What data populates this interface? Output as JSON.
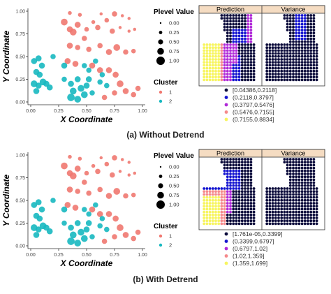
{
  "panels": [
    {
      "caption": "(a) Without Detrend",
      "scatter": {
        "xlabel": "X Coordinate",
        "ylabel": "Y Coordinate",
        "xticks": [
          "0.00",
          "0.25",
          "0.50",
          "0.75",
          "1.00"
        ],
        "yticks": [
          "0.00",
          "0.25",
          "0.50",
          "0.75",
          "1.00"
        ]
      },
      "size_legend": {
        "title": "Plevel Value",
        "labels": [
          "0.00",
          "0.25",
          "0.50",
          "0.75",
          "1.00"
        ]
      },
      "cluster_legend": {
        "title": "Cluster",
        "labels": [
          "1",
          "2"
        ]
      },
      "map": {
        "facets": [
          "Prediction",
          "Variance"
        ],
        "bins": [
          "[0.04386,0.2118]",
          "(0.2118,0.3797]",
          "(0.3797,0.5476]",
          "(0.5476,0.7155]",
          "(0.7155,0.8834]"
        ]
      }
    },
    {
      "caption": "(b) With Detrend",
      "scatter": {
        "xlabel": "X Coordinate",
        "ylabel": "Y Coordinate",
        "xticks": [
          "0.00",
          "0.25",
          "0.50",
          "0.75",
          "1.00"
        ],
        "yticks": [
          "0.00",
          "0.25",
          "0.50",
          "0.75",
          "1.00"
        ]
      },
      "size_legend": {
        "title": "Plevel Value",
        "labels": [
          "0.00",
          "0.25",
          "0.50",
          "0.75",
          "1.00"
        ]
      },
      "cluster_legend": {
        "title": "Cluster",
        "labels": [
          "1",
          "2"
        ]
      },
      "map": {
        "facets": [
          "Prediction",
          "Variance"
        ],
        "bins": [
          "[1.761e-05,0.3399]",
          "(0.3399,0.6797]",
          "(0.6797,1.02]",
          "(1.02,1.359]",
          "(1.359,1.699]"
        ]
      }
    }
  ],
  "colors": {
    "cluster1": "#f07870",
    "cluster2": "#17b8c0",
    "bins": [
      "#0b0b3b",
      "#1515d0",
      "#b02ad8",
      "#f58a8c",
      "#f7f560"
    ],
    "strip": "#f5dcc2"
  },
  "chart_data": [
    {
      "type": "scatter",
      "xlim": [
        0,
        1
      ],
      "ylim": [
        0,
        1
      ],
      "size_var": "Plevel Value",
      "color_var": "Cluster",
      "series": [
        {
          "name": "1",
          "points": [
            [
              0.35,
              0.98,
              0.3
            ],
            [
              0.44,
              0.96,
              0.3
            ],
            [
              0.63,
              0.97,
              0.2
            ],
            [
              0.75,
              0.97,
              0.5
            ],
            [
              0.82,
              0.95,
              0.2
            ],
            [
              0.88,
              0.92,
              0.2
            ],
            [
              0.3,
              0.88,
              0.7
            ],
            [
              0.35,
              0.8,
              0.6
            ],
            [
              0.38,
              0.77,
              0.7
            ],
            [
              0.42,
              0.85,
              0.6
            ],
            [
              0.56,
              0.88,
              0.3
            ],
            [
              0.5,
              0.8,
              0.4
            ],
            [
              0.6,
              0.82,
              0.5
            ],
            [
              0.68,
              0.9,
              0.4
            ],
            [
              0.73,
              0.78,
              0.5
            ],
            [
              0.8,
              0.82,
              0.2
            ],
            [
              0.88,
              0.78,
              0.2
            ],
            [
              0.93,
              0.8,
              0.2
            ],
            [
              0.35,
              0.62,
              0.6
            ],
            [
              0.42,
              0.6,
              0.5
            ],
            [
              0.48,
              0.7,
              0.5
            ],
            [
              0.52,
              0.58,
              0.5
            ],
            [
              0.62,
              0.62,
              0.5
            ],
            [
              0.7,
              0.55,
              0.6
            ],
            [
              0.77,
              0.6,
              0.7
            ],
            [
              0.85,
              0.55,
              0.5
            ],
            [
              0.92,
              0.56,
              0.4
            ],
            [
              0.33,
              0.45,
              0.6
            ],
            [
              0.4,
              0.42,
              0.6
            ],
            [
              0.55,
              0.4,
              0.6
            ],
            [
              0.62,
              0.35,
              0.6
            ],
            [
              0.7,
              0.35,
              0.6
            ],
            [
              0.76,
              0.3,
              0.6
            ],
            [
              0.8,
              0.2,
              0.7
            ],
            [
              0.85,
              0.12,
              0.6
            ],
            [
              0.92,
              0.08,
              0.5
            ],
            [
              0.96,
              0.15,
              0.5
            ],
            [
              0.75,
              0.1,
              0.5
            ],
            [
              0.66,
              0.05,
              0.5
            ]
          ]
        },
        {
          "name": "2",
          "points": [
            [
              0.03,
              0.45,
              0.6
            ],
            [
              0.07,
              0.48,
              0.6
            ],
            [
              0.1,
              0.4,
              0.6
            ],
            [
              0.05,
              0.33,
              0.6
            ],
            [
              0.08,
              0.3,
              0.6
            ],
            [
              0.03,
              0.2,
              0.7
            ],
            [
              0.07,
              0.18,
              0.6
            ],
            [
              0.11,
              0.22,
              0.7
            ],
            [
              0.14,
              0.2,
              0.6
            ],
            [
              0.17,
              0.16,
              0.6
            ],
            [
              0.05,
              0.12,
              0.6
            ],
            [
              0.2,
              0.5,
              0.5
            ],
            [
              0.3,
              0.4,
              0.6
            ],
            [
              0.36,
              0.2,
              0.6
            ],
            [
              0.38,
              0.12,
              0.7
            ],
            [
              0.36,
              0.05,
              0.8
            ],
            [
              0.42,
              0.03,
              0.7
            ],
            [
              0.45,
              0.15,
              0.7
            ],
            [
              0.48,
              0.08,
              0.7
            ],
            [
              0.5,
              0.18,
              0.6
            ],
            [
              0.52,
              0.25,
              0.6
            ],
            [
              0.55,
              0.1,
              0.5
            ],
            [
              0.42,
              0.25,
              0.6
            ],
            [
              0.48,
              0.4,
              0.5
            ],
            [
              0.58,
              0.45,
              0.5
            ],
            [
              0.62,
              0.22,
              0.5
            ],
            [
              0.64,
              0.3,
              0.5
            ],
            [
              0.68,
              0.18,
              0.5
            ],
            [
              0.52,
              0.35,
              0.5
            ],
            [
              0.3,
              0.25,
              0.5
            ]
          ]
        }
      ]
    },
    {
      "type": "heatmap",
      "facets": [
        "Prediction",
        "Variance"
      ],
      "legend_bins": [
        "[0.04386,0.2118]",
        "(0.2118,0.3797]",
        "(0.3797,0.5476]",
        "(0.5476,0.7155]",
        "(0.7155,0.8834]"
      ]
    },
    {
      "type": "scatter",
      "xlim": [
        0,
        1
      ],
      "ylim": [
        0,
        1
      ],
      "size_var": "Plevel Value",
      "color_var": "Cluster",
      "series": [
        {
          "name": "1",
          "points": [
            [
              0.35,
              0.98,
              0.3
            ],
            [
              0.44,
              0.96,
              0.3
            ],
            [
              0.63,
              0.97,
              0.2
            ],
            [
              0.75,
              0.97,
              0.5
            ],
            [
              0.82,
              0.95,
              0.2
            ],
            [
              0.88,
              0.92,
              0.2
            ],
            [
              0.3,
              0.88,
              0.7
            ],
            [
              0.35,
              0.8,
              0.6
            ],
            [
              0.38,
              0.77,
              0.7
            ],
            [
              0.42,
              0.85,
              0.6
            ],
            [
              0.56,
              0.88,
              0.3
            ],
            [
              0.5,
              0.8,
              0.4
            ],
            [
              0.6,
              0.82,
              0.5
            ],
            [
              0.68,
              0.9,
              0.4
            ],
            [
              0.73,
              0.78,
              0.5
            ],
            [
              0.8,
              0.82,
              0.2
            ],
            [
              0.88,
              0.78,
              0.2
            ],
            [
              0.93,
              0.8,
              0.2
            ],
            [
              0.35,
              0.62,
              0.6
            ],
            [
              0.42,
              0.6,
              0.5
            ],
            [
              0.48,
              0.7,
              0.5
            ],
            [
              0.52,
              0.58,
              0.5
            ],
            [
              0.62,
              0.62,
              0.5
            ],
            [
              0.7,
              0.55,
              0.6
            ],
            [
              0.77,
              0.6,
              0.7
            ],
            [
              0.85,
              0.55,
              0.5
            ],
            [
              0.92,
              0.56,
              0.4
            ],
            [
              0.33,
              0.45,
              0.6
            ],
            [
              0.4,
              0.42,
              0.6
            ],
            [
              0.55,
              0.4,
              0.6
            ],
            [
              0.62,
              0.35,
              0.6
            ],
            [
              0.7,
              0.35,
              0.6
            ],
            [
              0.76,
              0.3,
              0.6
            ],
            [
              0.8,
              0.2,
              0.7
            ],
            [
              0.85,
              0.12,
              0.6
            ],
            [
              0.92,
              0.08,
              0.5
            ],
            [
              0.96,
              0.15,
              0.5
            ],
            [
              0.75,
              0.1,
              0.5
            ],
            [
              0.66,
              0.05,
              0.5
            ]
          ]
        },
        {
          "name": "2",
          "points": [
            [
              0.03,
              0.45,
              0.6
            ],
            [
              0.07,
              0.48,
              0.6
            ],
            [
              0.1,
              0.4,
              0.6
            ],
            [
              0.05,
              0.33,
              0.6
            ],
            [
              0.08,
              0.3,
              0.6
            ],
            [
              0.03,
              0.2,
              0.7
            ],
            [
              0.07,
              0.18,
              0.6
            ],
            [
              0.11,
              0.22,
              0.7
            ],
            [
              0.14,
              0.2,
              0.6
            ],
            [
              0.17,
              0.16,
              0.6
            ],
            [
              0.05,
              0.12,
              0.6
            ],
            [
              0.2,
              0.5,
              0.5
            ],
            [
              0.3,
              0.4,
              0.6
            ],
            [
              0.36,
              0.2,
              0.6
            ],
            [
              0.38,
              0.12,
              0.7
            ],
            [
              0.36,
              0.05,
              0.8
            ],
            [
              0.42,
              0.03,
              0.7
            ],
            [
              0.45,
              0.15,
              0.7
            ],
            [
              0.48,
              0.08,
              0.7
            ],
            [
              0.5,
              0.18,
              0.6
            ],
            [
              0.52,
              0.25,
              0.6
            ],
            [
              0.55,
              0.1,
              0.5
            ],
            [
              0.42,
              0.25,
              0.6
            ],
            [
              0.48,
              0.4,
              0.5
            ],
            [
              0.58,
              0.45,
              0.5
            ],
            [
              0.62,
              0.22,
              0.5
            ],
            [
              0.64,
              0.3,
              0.5
            ],
            [
              0.68,
              0.18,
              0.5
            ],
            [
              0.52,
              0.35,
              0.5
            ],
            [
              0.3,
              0.25,
              0.5
            ]
          ]
        }
      ]
    },
    {
      "type": "heatmap",
      "facets": [
        "Prediction",
        "Variance"
      ],
      "legend_bins": [
        "[1.761e-05,0.3399]",
        "(0.3399,0.6797]",
        "(0.6797,1.02]",
        "(1.02,1.359]",
        "(1.359,1.699]"
      ]
    }
  ]
}
